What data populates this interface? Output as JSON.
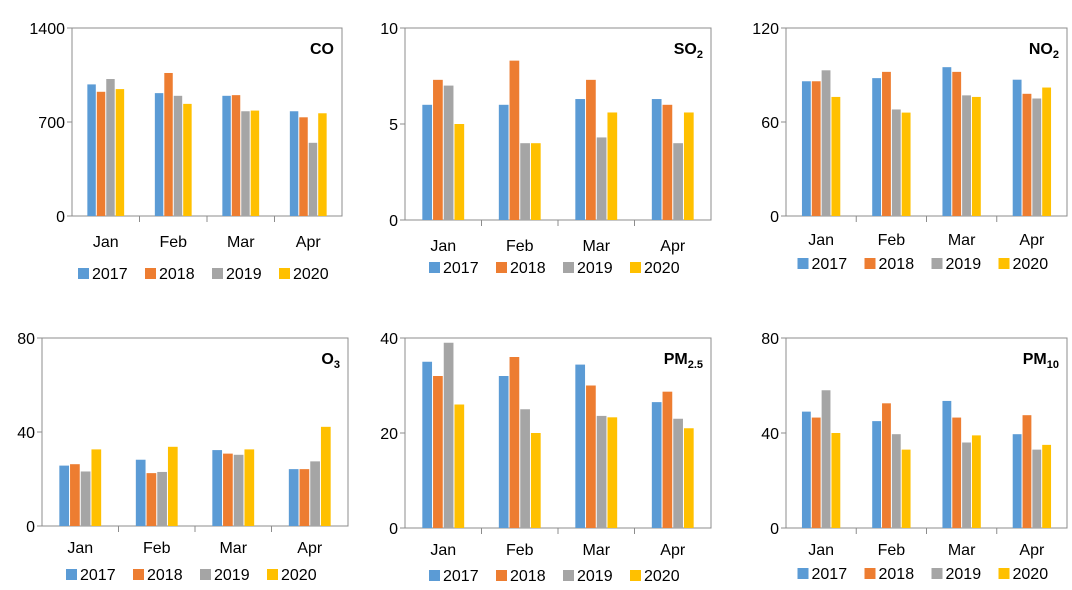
{
  "colors": {
    "2017": "#5B9BD5",
    "2018": "#ED7D31",
    "2019": "#A5A5A5",
    "2020": "#FFC000"
  },
  "chart_data": [
    {
      "type": "bar",
      "title": "CO",
      "title_sub": "",
      "categories": [
        "Jan",
        "Feb",
        "Mar",
        "Apr"
      ],
      "ylim": [
        0,
        1400
      ],
      "yticks": [
        "0",
        "700",
        "1400"
      ],
      "legend": "bottom",
      "series": [
        {
          "name": "2017",
          "values": [
            980,
            915,
            895,
            780
          ]
        },
        {
          "name": "2018",
          "values": [
            925,
            1065,
            900,
            735
          ]
        },
        {
          "name": "2019",
          "values": [
            1020,
            895,
            780,
            545
          ]
        },
        {
          "name": "2020",
          "values": [
            945,
            835,
            785,
            765
          ]
        }
      ]
    },
    {
      "type": "bar",
      "title": "SO",
      "title_sub": "2",
      "categories": [
        "Jan",
        "Feb",
        "Mar",
        "Apr"
      ],
      "ylim": [
        0,
        10
      ],
      "yticks": [
        "0",
        "5",
        "10"
      ],
      "legend": "bottom",
      "series": [
        {
          "name": "2017",
          "values": [
            6.0,
            6.0,
            6.3,
            6.3
          ]
        },
        {
          "name": "2018",
          "values": [
            7.3,
            8.3,
            7.3,
            6.0
          ]
        },
        {
          "name": "2019",
          "values": [
            7.0,
            4.0,
            4.3,
            4.0
          ]
        },
        {
          "name": "2020",
          "values": [
            5.0,
            4.0,
            5.6,
            5.6
          ]
        }
      ]
    },
    {
      "type": "bar",
      "title": "NO",
      "title_sub": "2",
      "categories": [
        "Jan",
        "Feb",
        "Mar",
        "Apr"
      ],
      "ylim": [
        0,
        120
      ],
      "yticks": [
        "0",
        "60",
        "120"
      ],
      "legend": "bottom",
      "series": [
        {
          "name": "2017",
          "values": [
            86,
            88,
            95,
            87
          ]
        },
        {
          "name": "2018",
          "values": [
            86,
            92,
            92,
            78
          ]
        },
        {
          "name": "2019",
          "values": [
            93,
            68,
            77,
            75
          ]
        },
        {
          "name": "2020",
          "values": [
            76,
            66,
            76,
            82
          ]
        }
      ]
    },
    {
      "type": "bar",
      "title": "O",
      "title_sub": "3",
      "categories": [
        "Jan",
        "Feb",
        "Mar",
        "Apr"
      ],
      "ylim": [
        0,
        80
      ],
      "yticks": [
        "0",
        "40",
        "80"
      ],
      "legend": "bottom",
      "series": [
        {
          "name": "2017",
          "values": [
            25.7,
            28.2,
            32.3,
            24.2
          ]
        },
        {
          "name": "2018",
          "values": [
            26.3,
            22.5,
            30.8,
            24.2
          ]
        },
        {
          "name": "2019",
          "values": [
            23.2,
            23.0,
            30.3,
            27.5
          ]
        },
        {
          "name": "2020",
          "values": [
            32.6,
            33.7,
            32.6,
            42.2
          ]
        }
      ]
    },
    {
      "type": "bar",
      "title": "PM",
      "title_sub": "2.5",
      "categories": [
        "Jan",
        "Feb",
        "Mar",
        "Apr"
      ],
      "ylim": [
        0,
        40
      ],
      "yticks": [
        "0",
        "20",
        "40"
      ],
      "legend": "bottom",
      "series": [
        {
          "name": "2017",
          "values": [
            35.0,
            32.0,
            34.4,
            26.5
          ]
        },
        {
          "name": "2018",
          "values": [
            32.0,
            36.0,
            30.0,
            28.7
          ]
        },
        {
          "name": "2019",
          "values": [
            39.0,
            25.0,
            23.6,
            23.0
          ]
        },
        {
          "name": "2020",
          "values": [
            26.0,
            20.0,
            23.3,
            21.0
          ]
        }
      ]
    },
    {
      "type": "bar",
      "title": "PM",
      "title_sub": "10",
      "categories": [
        "Jan",
        "Feb",
        "Mar",
        "Apr"
      ],
      "ylim": [
        0,
        80
      ],
      "yticks": [
        "0",
        "40",
        "80"
      ],
      "legend": "bottom",
      "series": [
        {
          "name": "2017",
          "values": [
            49,
            45,
            53.5,
            39.5
          ]
        },
        {
          "name": "2018",
          "values": [
            46.5,
            52.5,
            46.5,
            47.5
          ]
        },
        {
          "name": "2019",
          "values": [
            58,
            39.5,
            36,
            33
          ]
        },
        {
          "name": "2020",
          "values": [
            40,
            33,
            39,
            35
          ]
        }
      ]
    }
  ]
}
